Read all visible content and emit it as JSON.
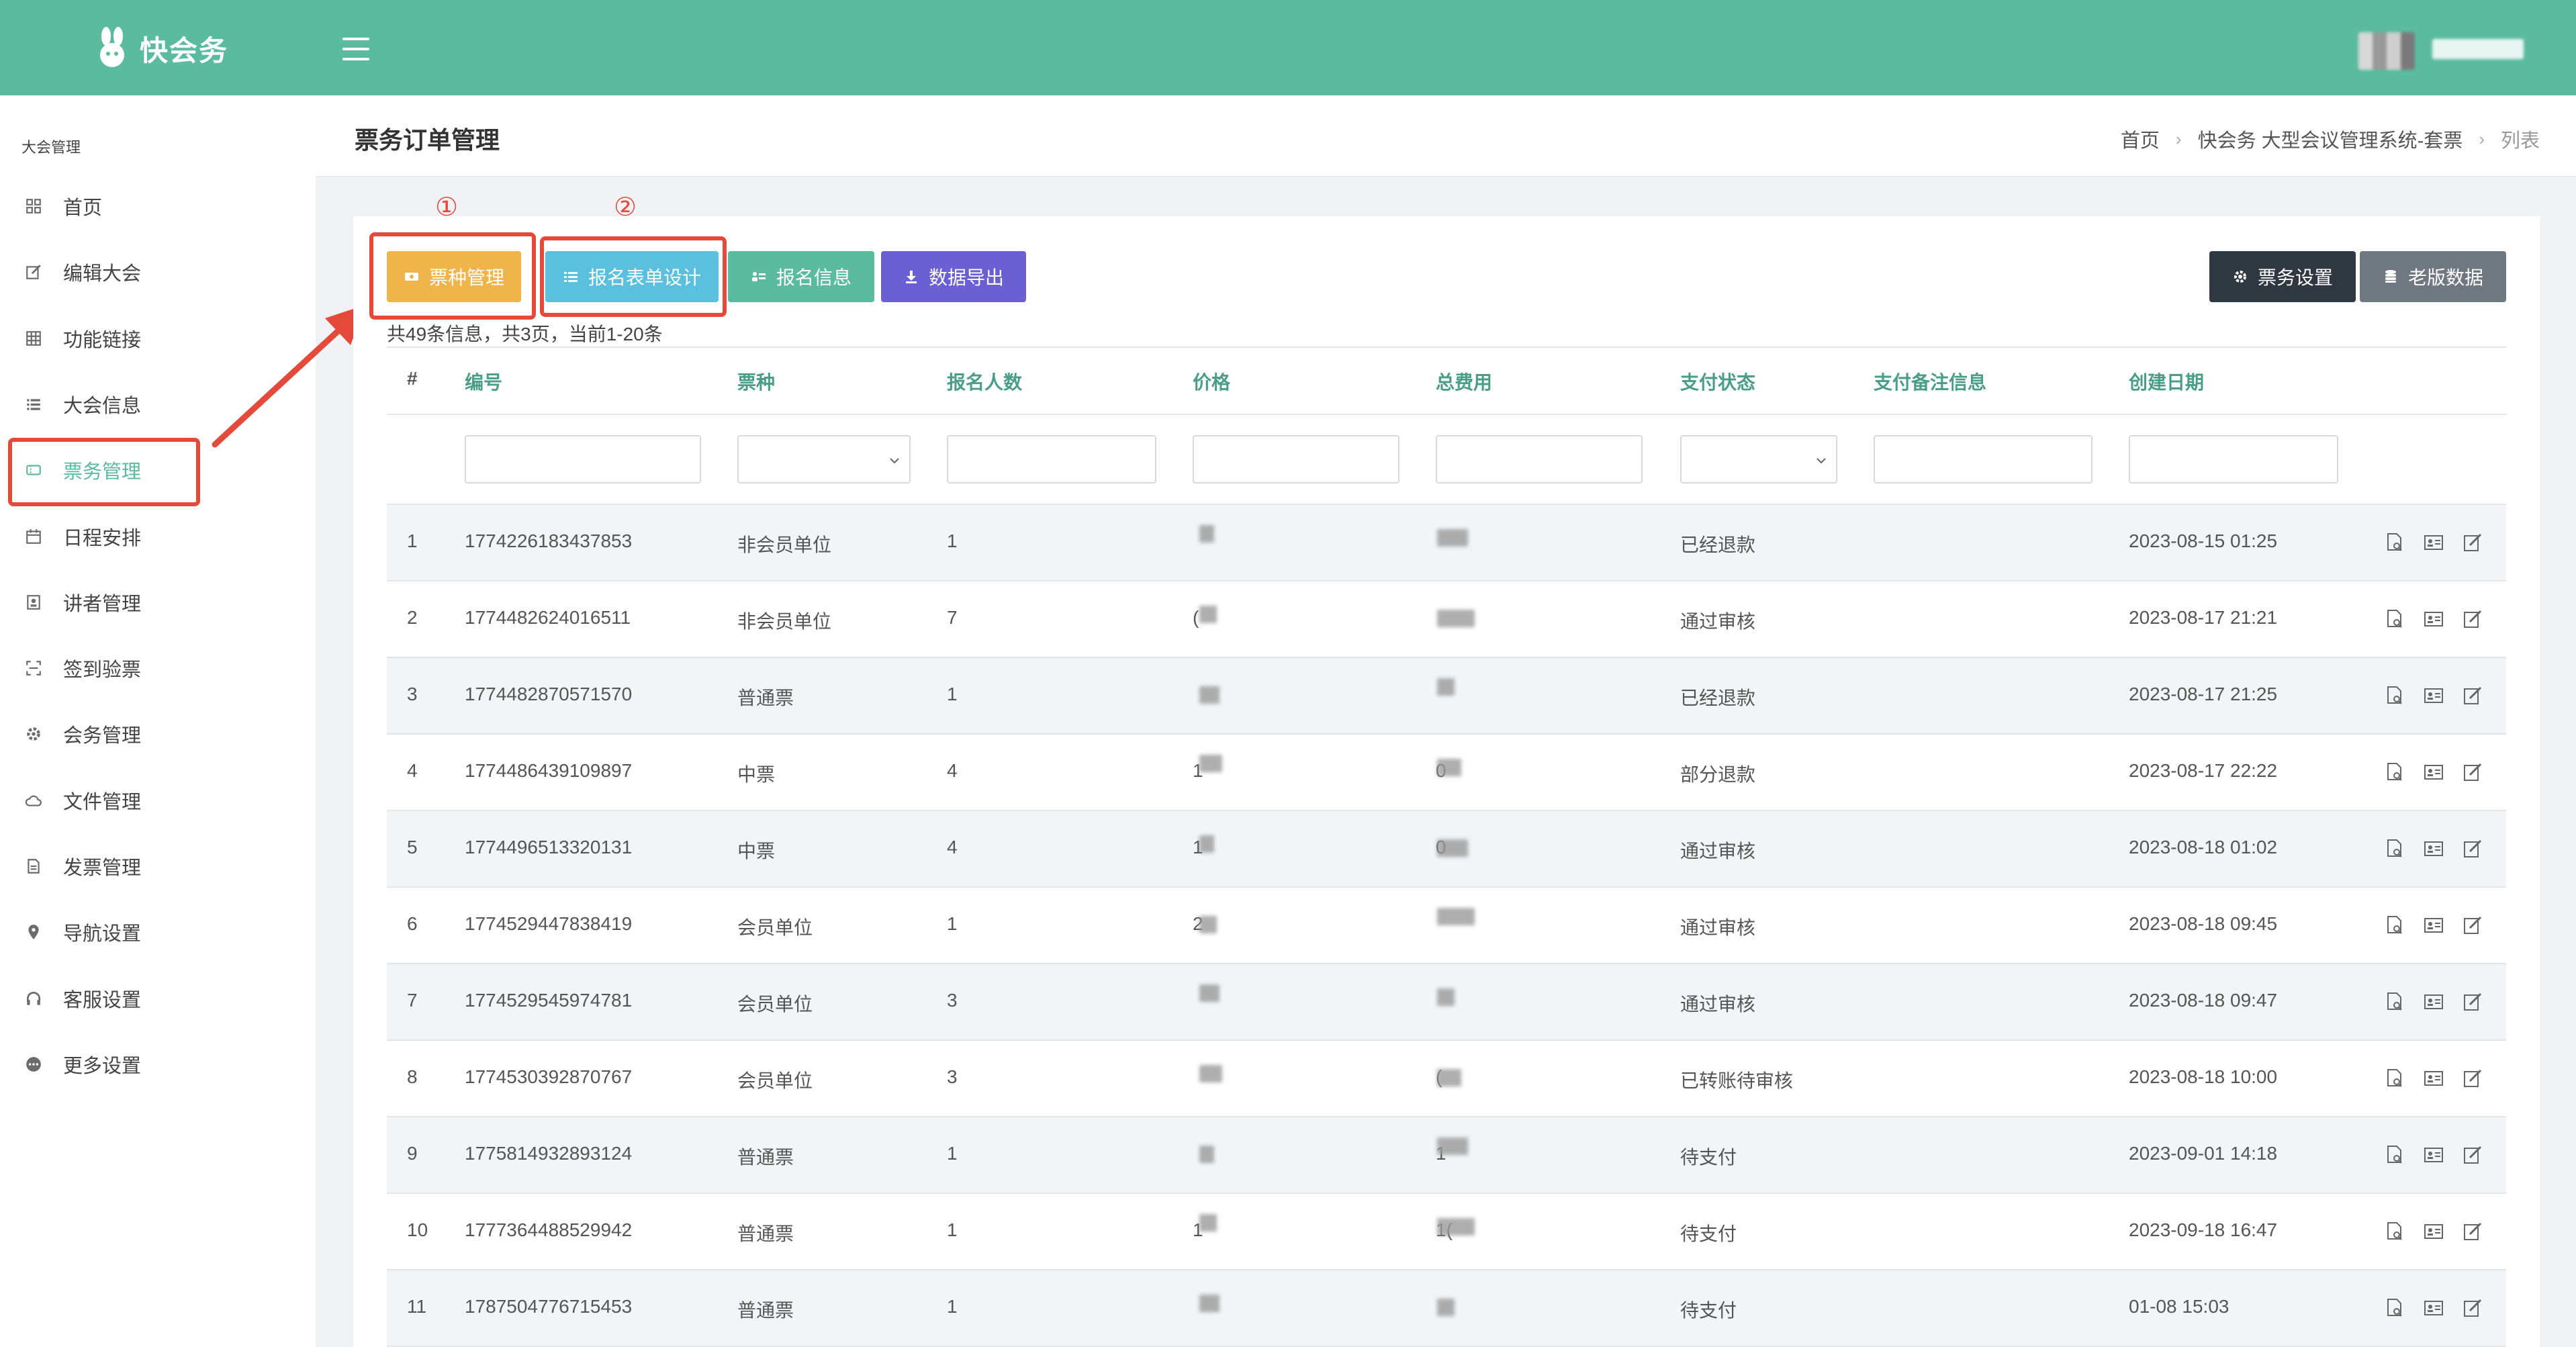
{
  "app": {
    "name": "快会务"
  },
  "sidebar": {
    "heading": "大会管理",
    "items": [
      {
        "label": "首页",
        "icon": "dashboard-icon"
      },
      {
        "label": "编辑大会",
        "icon": "edit-icon"
      },
      {
        "label": "功能链接",
        "icon": "grid-icon"
      },
      {
        "label": "大会信息",
        "icon": "list-icon"
      },
      {
        "label": "票务管理",
        "icon": "ticket-icon",
        "active": true
      },
      {
        "label": "日程安排",
        "icon": "calendar-icon"
      },
      {
        "label": "讲者管理",
        "icon": "id-card-icon"
      },
      {
        "label": "签到验票",
        "icon": "scan-icon"
      },
      {
        "label": "会务管理",
        "icon": "gear-icon"
      },
      {
        "label": "文件管理",
        "icon": "cloud-icon"
      },
      {
        "label": "发票管理",
        "icon": "invoice-icon"
      },
      {
        "label": "导航设置",
        "icon": "location-pin-icon"
      },
      {
        "label": "客服设置",
        "icon": "headset-icon"
      },
      {
        "label": "更多设置",
        "icon": "more-icon"
      }
    ]
  },
  "page": {
    "title": "票务订单管理",
    "breadcrumb": [
      "首页",
      "快会务 大型会议管理系统-套票",
      "列表"
    ]
  },
  "annotations": {
    "mark1": "①",
    "mark2": "②"
  },
  "toolbar": {
    "ticket_types": "票种管理",
    "form_design": "报名表单设计",
    "registration_info": "报名信息",
    "data_export": "数据导出",
    "ticket_settings": "票务设置",
    "legacy_data": "老版数据"
  },
  "colors": {
    "header": "#5bbb9f",
    "orange": "#efb54a",
    "sky": "#5bc0de",
    "green": "#5bbb9f",
    "purple": "#6a5fd3",
    "dark": "#2f3740",
    "gray": "#6f7881",
    "annotation": "#e4493a"
  },
  "summary": "共49条信息，共3页，当前1-20条",
  "table": {
    "columns": [
      "#",
      "编号",
      "票种",
      "报名人数",
      "价格",
      "总费用",
      "支付状态",
      "支付备注信息",
      "创建日期"
    ],
    "rows": [
      {
        "n": "1",
        "id": "1774226183437853",
        "type": "非会员单位",
        "count": "1",
        "price": "",
        "total": "",
        "status": "已经退款",
        "note": "",
        "date": "2023-08-15 01:25"
      },
      {
        "n": "2",
        "id": "1774482624016511",
        "type": "非会员单位",
        "count": "7",
        "price": "(",
        "total": "",
        "status": "通过审核",
        "note": "",
        "date": "2023-08-17 21:21"
      },
      {
        "n": "3",
        "id": "1774482870571570",
        "type": "普通票",
        "count": "1",
        "price": "",
        "total": "",
        "status": "已经退款",
        "note": "",
        "date": "2023-08-17 21:25"
      },
      {
        "n": "4",
        "id": "1774486439109897",
        "type": "中票",
        "count": "4",
        "price": "1",
        "total": "0",
        "status": "部分退款",
        "note": "",
        "date": "2023-08-17 22:22"
      },
      {
        "n": "5",
        "id": "1774496513320131",
        "type": "中票",
        "count": "4",
        "price": "1",
        "total": "0",
        "status": "通过审核",
        "note": "",
        "date": "2023-08-18 01:02"
      },
      {
        "n": "6",
        "id": "1774529447838419",
        "type": "会员单位",
        "count": "1",
        "price": "2",
        "total": "",
        "status": "通过审核",
        "note": "",
        "date": "2023-08-18 09:45"
      },
      {
        "n": "7",
        "id": "1774529545974781",
        "type": "会员单位",
        "count": "3",
        "price": "",
        "total": "",
        "status": "通过审核",
        "note": "",
        "date": "2023-08-18 09:47"
      },
      {
        "n": "8",
        "id": "1774530392870767",
        "type": "会员单位",
        "count": "3",
        "price": "",
        "total": "(",
        "status": "已转账待审核",
        "note": "",
        "date": "2023-08-18 10:00"
      },
      {
        "n": "9",
        "id": "1775814932893124",
        "type": "普通票",
        "count": "1",
        "price": "",
        "total": "1",
        "status": "待支付",
        "note": "",
        "date": "2023-09-01 14:18"
      },
      {
        "n": "10",
        "id": "1777364488529942",
        "type": "普通票",
        "count": "1",
        "price": "1",
        "total": "1(",
        "status": "待支付",
        "note": "",
        "date": "2023-09-18 16:47"
      },
      {
        "n": "11",
        "id": "1787504776715453",
        "type": "普通票",
        "count": "1",
        "price": "",
        "total": "",
        "status": "待支付",
        "note": "",
        "date": "01-08 15:03"
      }
    ]
  }
}
